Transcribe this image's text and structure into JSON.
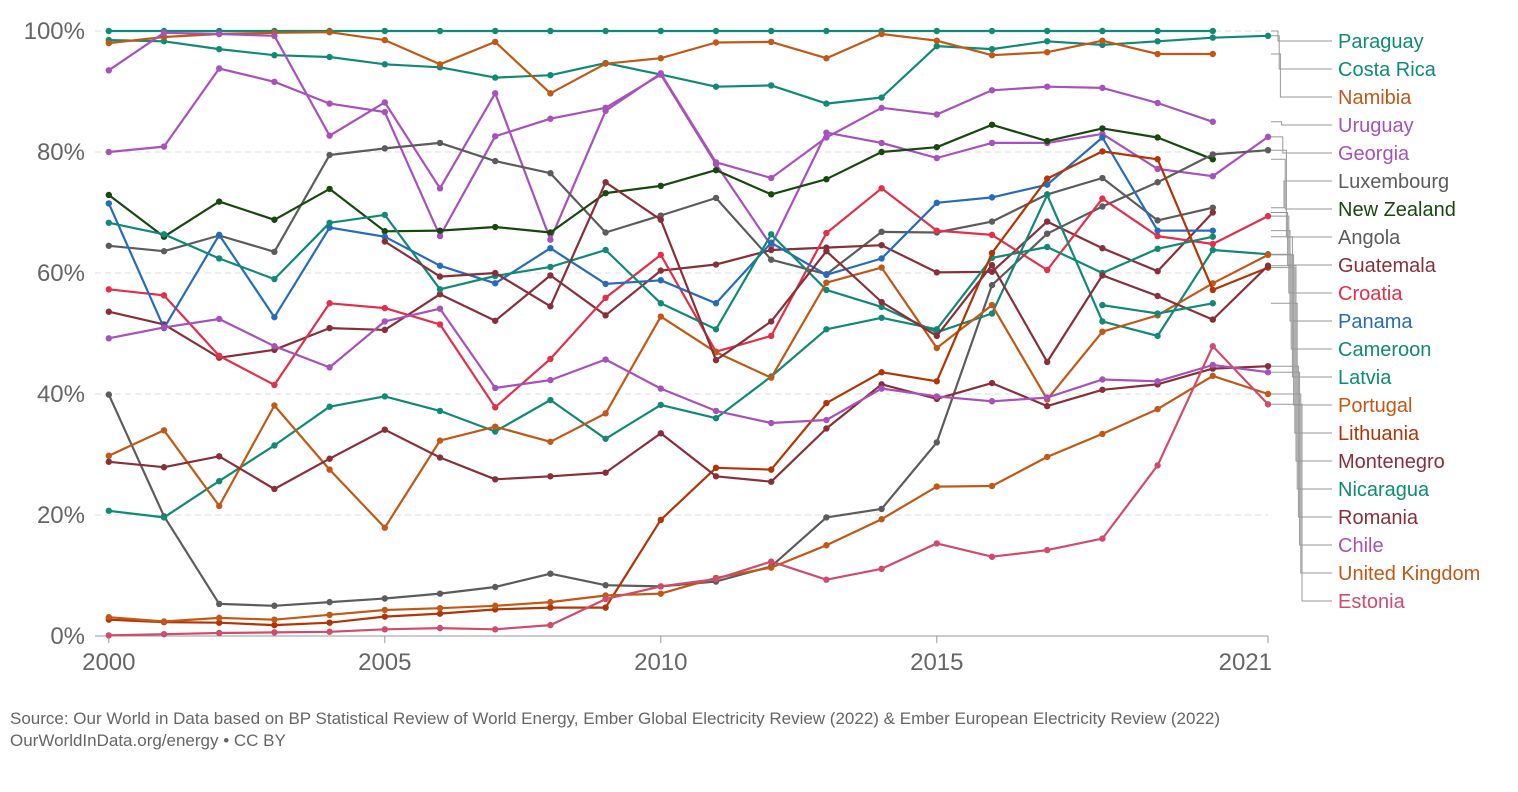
{
  "chart_data": {
    "type": "line",
    "title": "",
    "xlabel": "",
    "ylabel": "",
    "x_ticks": [
      2000,
      2005,
      2010,
      2015,
      2021
    ],
    "y_ticks": [
      "0%",
      "20%",
      "40%",
      "60%",
      "80%",
      "100%"
    ],
    "xlim": [
      1999.75,
      2021
    ],
    "ylim": [
      0,
      100
    ],
    "grid": "horizontal dashed",
    "legend": "right, labels sorted by final value",
    "x": [
      2000,
      2001,
      2002,
      2003,
      2004,
      2005,
      2006,
      2007,
      2008,
      2009,
      2010,
      2011,
      2012,
      2013,
      2014,
      2015,
      2016,
      2017,
      2018,
      2019,
      2020,
      2021
    ],
    "series": [
      {
        "name": "Paraguay",
        "color": "#108a76",
        "values": [
          100,
          100,
          100,
          100,
          100,
          100,
          100,
          100,
          100,
          100,
          100,
          100,
          100,
          100,
          100,
          100,
          100,
          100,
          100,
          100,
          100,
          null
        ]
      },
      {
        "name": "Costa Rica",
        "color": "#108a76",
        "values": [
          98.5,
          98.3,
          97,
          96,
          95.7,
          94.5,
          94,
          92.3,
          92.7,
          94.7,
          92.8,
          90.8,
          91,
          88,
          89,
          97.5,
          97,
          98.3,
          97.7,
          98.3,
          98.9,
          99.2
        ]
      },
      {
        "name": "Namibia",
        "color": "#c05917",
        "values": [
          98,
          99,
          99.5,
          99.7,
          99.8,
          98.5,
          94.5,
          98.2,
          89.7,
          94.6,
          95.5,
          98.1,
          98.2,
          95.5,
          99.5,
          98.4,
          96,
          96.5,
          98.4,
          96.2,
          96.2,
          null
        ]
      },
      {
        "name": "Uruguay",
        "color": "#a652ba",
        "values": [
          93.5,
          99.7,
          99.5,
          99.2,
          82.7,
          88.2,
          74,
          89.7,
          65.5,
          86.8,
          93,
          78.3,
          75.7,
          82.4,
          87.3,
          86.2,
          90.2,
          90.8,
          90.6,
          88.1,
          85,
          null
        ]
      },
      {
        "name": "Georgia",
        "color": "#a652ba",
        "values": [
          80,
          80.9,
          93.8,
          91.6,
          88,
          86.6,
          66.1,
          82.6,
          85.5,
          87.3,
          92.8,
          78,
          64.5,
          83.2,
          81.5,
          79,
          81.5,
          81.5,
          83,
          77.2,
          76,
          82.5
        ]
      },
      {
        "name": "Luxembourg",
        "color": "#5c5c5c",
        "values": [
          64.5,
          63.6,
          66.2,
          63.5,
          79.5,
          80.6,
          81.5,
          78.5,
          76.5,
          66.7,
          69.5,
          72.4,
          62.2,
          59.8,
          66.8,
          66.7,
          68.5,
          73,
          75.7,
          68.7,
          70.8,
          null
        ]
      },
      {
        "name": "New Zealand",
        "color": "#18470f",
        "values": [
          72.9,
          66,
          71.8,
          68.8,
          73.9,
          66.9,
          67,
          67.6,
          66.7,
          73.2,
          74.4,
          77,
          73,
          75.5,
          80,
          80.8,
          84.5,
          81.8,
          83.9,
          82.4,
          78.8,
          null
        ]
      },
      {
        "name": "Angola",
        "color": "#5c5c5c",
        "values": [
          39.9,
          19.8,
          5.3,
          5,
          5.6,
          6.2,
          7,
          8.1,
          10.3,
          8.4,
          8.2,
          9,
          11.5,
          19.6,
          21,
          32,
          58,
          66.5,
          71,
          75,
          79.6,
          80.3
        ]
      },
      {
        "name": "Guatemala",
        "color": "#883039",
        "values": [
          53.6,
          51.5,
          46,
          47.3,
          50.9,
          50.6,
          56.5,
          52.1,
          59.6,
          53,
          60.4,
          61.4,
          63.8,
          64.2,
          64.6,
          60.1,
          60.2,
          68.5,
          64.1,
          60.3,
          70,
          null
        ]
      },
      {
        "name": "Croatia",
        "color": "#e0304a",
        "values": [
          57.3,
          56.3,
          46.3,
          41.5,
          55,
          54.2,
          51.5,
          37.8,
          45.8,
          55.9,
          63,
          47,
          49.6,
          66.6,
          74,
          67,
          66.3,
          60.5,
          72.3,
          66.1,
          64.8,
          69.4
        ]
      },
      {
        "name": "Panama",
        "color": "#286bbb",
        "values": [
          71.5,
          50.9,
          66.3,
          52.7,
          67.5,
          66,
          61.2,
          58.3,
          64.1,
          58.2,
          58.8,
          55,
          65,
          59.7,
          62.4,
          71.6,
          72.5,
          74.6,
          82.4,
          67,
          67,
          null
        ]
      },
      {
        "name": "Cameroon",
        "color": "#108a76",
        "values": [
          68.3,
          66.4,
          62.4,
          59,
          68.3,
          69.6,
          57.3,
          59.5,
          61,
          63.8,
          55,
          50.7,
          66.4,
          57.2,
          54.4,
          50.2,
          53.3,
          72.9,
          52,
          49.6,
          63.8,
          63.1
        ]
      },
      {
        "name": "Latvia",
        "color": "#108a76",
        "values": [
          20.7,
          19.6,
          25.6,
          31.5,
          37.9,
          39.6,
          37.2,
          33.8,
          39,
          32.6,
          38.2,
          36,
          42.9,
          50.7,
          52.6,
          50.7,
          62.5,
          64.3,
          60,
          64,
          66,
          null
        ]
      },
      {
        "name": "Portugal",
        "color": "#c05917",
        "values": [
          29.8,
          34,
          21.5,
          38.1,
          27.5,
          17.9,
          32.3,
          34.6,
          32.1,
          36.8,
          52.8,
          46.9,
          42.7,
          58.4,
          60.9,
          47.6,
          54.7,
          39.1,
          50.3,
          53,
          58.3,
          63
        ]
      },
      {
        "name": "Lithuania",
        "color": "#b13507",
        "values": [
          2.7,
          2.3,
          2.2,
          1.8,
          2.2,
          3.2,
          3.7,
          4.4,
          4.7,
          4.7,
          19.2,
          27.8,
          27.5,
          38.5,
          43.6,
          42.1,
          63.3,
          75.6,
          80.1,
          78.8,
          57.2,
          60.9
        ]
      },
      {
        "name": "Montenegro",
        "color": "#883039",
        "values": [
          null,
          null,
          null,
          null,
          null,
          65.2,
          59.4,
          60,
          54.5,
          75,
          68.8,
          45.6,
          52,
          63.6,
          55.2,
          49.6,
          61.3,
          45.3,
          59.6,
          56.2,
          52.3,
          61.2
        ]
      },
      {
        "name": "Nicaragua",
        "color": "#108a76",
        "values": [
          null,
          null,
          null,
          null,
          null,
          null,
          null,
          null,
          null,
          null,
          null,
          null,
          null,
          null,
          null,
          null,
          null,
          null,
          54.7,
          53.3,
          55,
          null
        ]
      },
      {
        "name": "Romania",
        "color": "#883039",
        "values": [
          28.8,
          27.9,
          29.7,
          24.3,
          29.3,
          34.1,
          29.5,
          25.9,
          26.4,
          27,
          33.5,
          26.4,
          25.5,
          34.3,
          41.6,
          39.2,
          41.8,
          38,
          40.7,
          41.6,
          44.2,
          44.6
        ]
      },
      {
        "name": "Chile",
        "color": "#a652ba",
        "values": [
          49.2,
          51,
          52.4,
          47.9,
          44.4,
          52,
          54.1,
          41,
          42.3,
          45.7,
          40.9,
          37.2,
          35.2,
          35.7,
          40.9,
          39.6,
          38.8,
          39.4,
          42.4,
          42.1,
          44.8,
          43.6
        ]
      },
      {
        "name": "United Kingdom",
        "color": "#c05917",
        "values": [
          3.1,
          2.4,
          3,
          2.7,
          3.5,
          4.3,
          4.6,
          5,
          5.6,
          6.7,
          7,
          9.6,
          11.3,
          15,
          19.3,
          24.7,
          24.8,
          29.6,
          33.4,
          37.5,
          43,
          40
        ]
      },
      {
        "name": "Estonia",
        "color": "#ce4c6c",
        "values": [
          0.1,
          0.3,
          0.5,
          0.6,
          0.7,
          1.1,
          1.3,
          1.1,
          1.8,
          6.1,
          8.2,
          9.4,
          12.3,
          9.3,
          11.1,
          15.3,
          13.1,
          14.2,
          16.1,
          28.2,
          47.9,
          38.3
        ]
      }
    ]
  },
  "footer": {
    "source": "Source: Our World in Data based on BP Statistical Review of World Energy, Ember Global Electricity Review (2022) & Ember European Electricity Review (2022)",
    "site": "OurWorldInData.org/energy • CC BY"
  }
}
